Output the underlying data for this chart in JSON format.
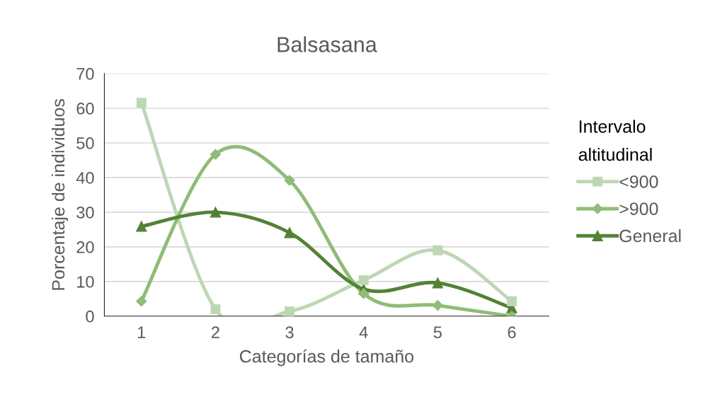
{
  "chart_data": {
    "type": "line",
    "title": "Balsasana",
    "xlabel": "Categorías de tamaño",
    "ylabel": "Porcentaje de individuos",
    "legend_title": "Intervalo\naltitudinal",
    "categories": [
      "1",
      "2",
      "3",
      "4",
      "5",
      "6"
    ],
    "series": [
      {
        "name": "<900",
        "color": "#bdd7b4",
        "marker": "square",
        "values": [
          61.6,
          2.0,
          1.4,
          10.4,
          19.0,
          4.3
        ]
      },
      {
        "name": ">900",
        "color": "#8fbc76",
        "marker": "diamond",
        "values": [
          4.3,
          46.7,
          39.2,
          6.5,
          3.1,
          0
        ]
      },
      {
        "name": "General",
        "color": "#548235",
        "marker": "triangle",
        "values": [
          25.9,
          30.0,
          24.1,
          7.8,
          9.6,
          2.4
        ]
      }
    ],
    "ylim": [
      0,
      70
    ],
    "yticks": [
      0,
      10,
      20,
      30,
      40,
      50,
      60,
      70
    ],
    "grid": "y",
    "legend": "right",
    "line_style": "solid"
  }
}
